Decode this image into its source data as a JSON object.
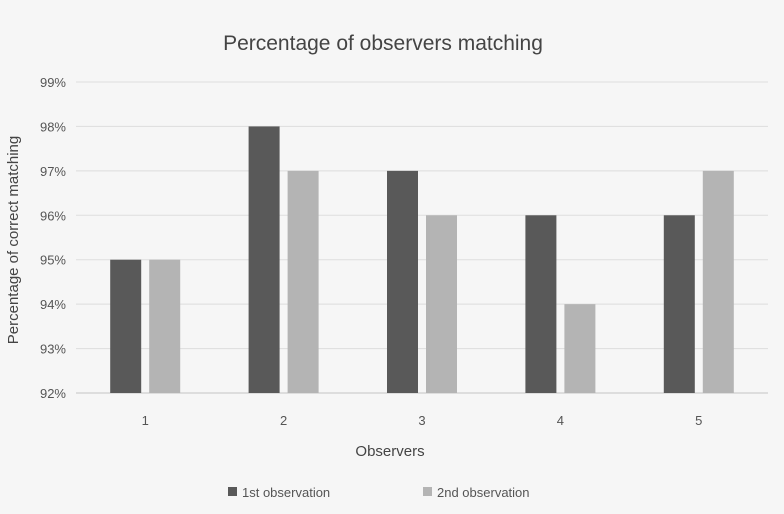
{
  "chart_data": {
    "type": "bar",
    "title": "Percentage of observers matching",
    "xlabel": "Observers",
    "ylabel": "Percentage of correct matching",
    "categories": [
      "1",
      "2",
      "3",
      "4",
      "5"
    ],
    "series": [
      {
        "name": "1st observation",
        "values": [
          95,
          98,
          97,
          96,
          96
        ],
        "color": "#595959"
      },
      {
        "name": "2nd observation",
        "values": [
          95,
          97,
          96,
          94,
          97
        ],
        "color": "#b4b4b4"
      }
    ],
    "ylim": [
      92,
      99
    ],
    "yticks": [
      92,
      93,
      94,
      95,
      96,
      97,
      98,
      99
    ],
    "ytick_labels": [
      "92%",
      "93%",
      "94%",
      "95%",
      "96%",
      "97%",
      "98%",
      "99%"
    ],
    "grid": true,
    "legend_position": "bottom-center"
  }
}
